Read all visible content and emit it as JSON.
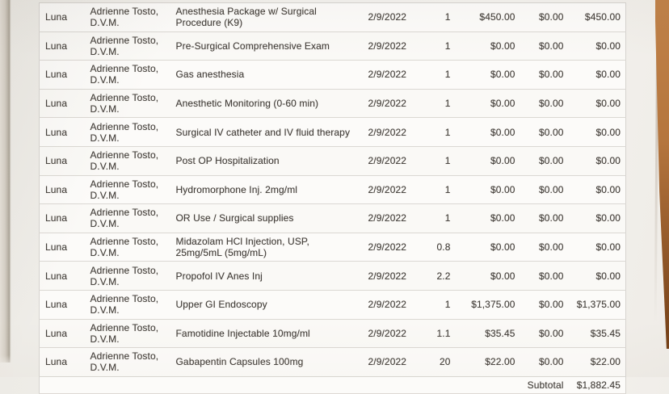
{
  "invoice": {
    "rows": [
      {
        "patient": "Luna",
        "provider": "Adrienne Tosto, D.V.M.",
        "description": "Anesthesia Package w/ Surgical Procedure (K9)",
        "date": "2/9/2022",
        "qty": "1",
        "price": "$450.00",
        "discount": "$0.00",
        "total": "$450.00"
      },
      {
        "patient": "Luna",
        "provider": "Adrienne Tosto, D.V.M.",
        "description": "Pre-Surgical Comprehensive Exam",
        "date": "2/9/2022",
        "qty": "1",
        "price": "$0.00",
        "discount": "$0.00",
        "total": "$0.00"
      },
      {
        "patient": "Luna",
        "provider": "Adrienne Tosto, D.V.M.",
        "description": "Gas anesthesia",
        "date": "2/9/2022",
        "qty": "1",
        "price": "$0.00",
        "discount": "$0.00",
        "total": "$0.00"
      },
      {
        "patient": "Luna",
        "provider": "Adrienne Tosto, D.V.M.",
        "description": "Anesthetic Monitoring (0-60 min)",
        "date": "2/9/2022",
        "qty": "1",
        "price": "$0.00",
        "discount": "$0.00",
        "total": "$0.00"
      },
      {
        "patient": "Luna",
        "provider": "Adrienne Tosto, D.V.M.",
        "description": "Surgical IV catheter and IV fluid therapy",
        "date": "2/9/2022",
        "qty": "1",
        "price": "$0.00",
        "discount": "$0.00",
        "total": "$0.00"
      },
      {
        "patient": "Luna",
        "provider": "Adrienne Tosto, D.V.M.",
        "description": "Post OP Hospitalization",
        "date": "2/9/2022",
        "qty": "1",
        "price": "$0.00",
        "discount": "$0.00",
        "total": "$0.00"
      },
      {
        "patient": "Luna",
        "provider": "Adrienne Tosto, D.V.M.",
        "description": "Hydromorphone Inj. 2mg/ml",
        "date": "2/9/2022",
        "qty": "1",
        "price": "$0.00",
        "discount": "$0.00",
        "total": "$0.00"
      },
      {
        "patient": "Luna",
        "provider": "Adrienne Tosto, D.V.M.",
        "description": "OR Use / Surgical supplies",
        "date": "2/9/2022",
        "qty": "1",
        "price": "$0.00",
        "discount": "$0.00",
        "total": "$0.00"
      },
      {
        "patient": "Luna",
        "provider": "Adrienne Tosto, D.V.M.",
        "description": "Midazolam HCl Injection, USP, 25mg/5mL (5mg/mL)",
        "date": "2/9/2022",
        "qty": "0.8",
        "price": "$0.00",
        "discount": "$0.00",
        "total": "$0.00"
      },
      {
        "patient": "Luna",
        "provider": "Adrienne Tosto, D.V.M.",
        "description": "Propofol IV Anes Inj",
        "date": "2/9/2022",
        "qty": "2.2",
        "price": "$0.00",
        "discount": "$0.00",
        "total": "$0.00"
      },
      {
        "patient": "Luna",
        "provider": "Adrienne Tosto, D.V.M.",
        "description": "Upper GI Endoscopy",
        "date": "2/9/2022",
        "qty": "1",
        "price": "$1,375.00",
        "discount": "$0.00",
        "total": "$1,375.00"
      },
      {
        "patient": "Luna",
        "provider": "Adrienne Tosto, D.V.M.",
        "description": "Famotidine Injectable 10mg/ml",
        "date": "2/9/2022",
        "qty": "1.1",
        "price": "$35.45",
        "discount": "$0.00",
        "total": "$35.45"
      },
      {
        "patient": "Luna",
        "provider": "Adrienne Tosto, D.V.M.",
        "description": "Gabapentin Capsules 100mg",
        "date": "2/9/2022",
        "qty": "20",
        "price": "$22.00",
        "discount": "$0.00",
        "total": "$22.00"
      }
    ],
    "subtotal": {
      "label": "Subtotal",
      "value": "$1,882.45"
    }
  },
  "colors": {
    "paper": "#f2f0ec",
    "table_background": "#fcfbf9",
    "row_border": "#dbd8d3",
    "text": "#44403c",
    "wood": "#a86a38"
  }
}
